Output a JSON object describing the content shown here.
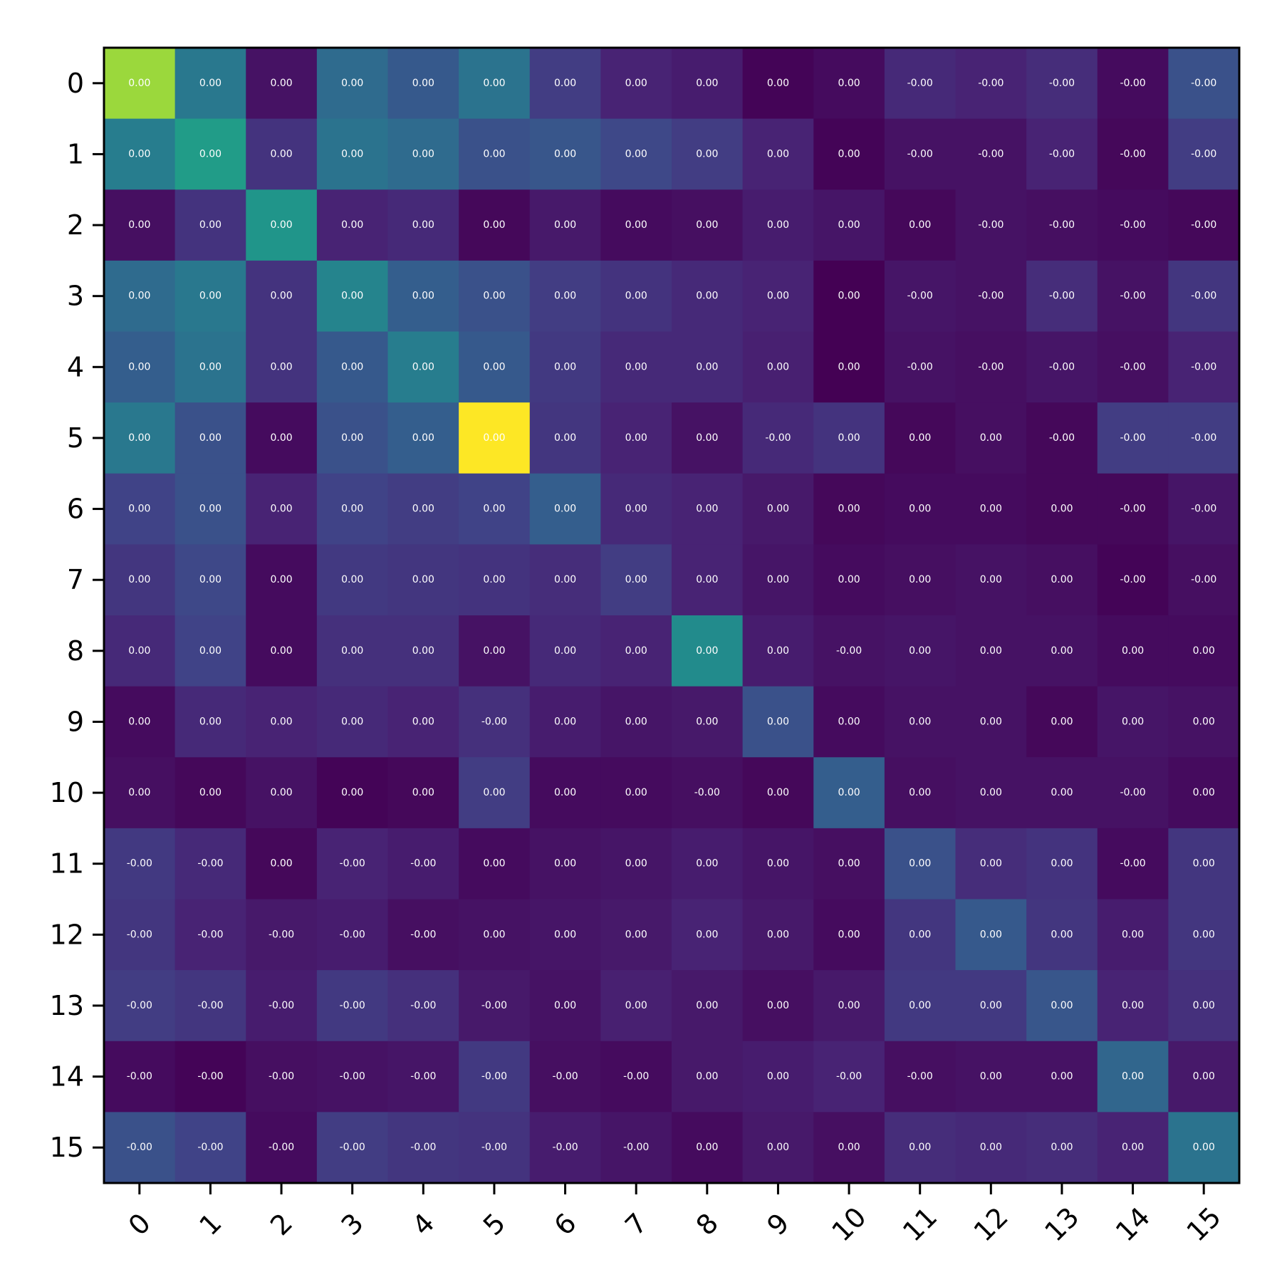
{
  "chart_data": {
    "type": "heatmap",
    "title": "",
    "xlabel": "",
    "ylabel": "",
    "x_ticks": [
      "0",
      "1",
      "2",
      "3",
      "4",
      "5",
      "6",
      "7",
      "8",
      "9",
      "10",
      "11",
      "12",
      "13",
      "14",
      "15"
    ],
    "y_ticks": [
      "0",
      "1",
      "2",
      "3",
      "4",
      "5",
      "6",
      "7",
      "8",
      "9",
      "10",
      "11",
      "12",
      "13",
      "14",
      "15"
    ],
    "colormap": "viridis",
    "intensity": [
      [
        0.85,
        0.4,
        0.05,
        0.35,
        0.28,
        0.38,
        0.18,
        0.1,
        0.08,
        0.01,
        0.03,
        0.12,
        0.1,
        0.13,
        0.03,
        0.25
      ],
      [
        0.42,
        0.55,
        0.15,
        0.38,
        0.35,
        0.25,
        0.27,
        0.22,
        0.18,
        0.1,
        0.01,
        0.05,
        0.05,
        0.1,
        0.02,
        0.18
      ],
      [
        0.04,
        0.15,
        0.52,
        0.1,
        0.12,
        0.02,
        0.07,
        0.03,
        0.04,
        0.08,
        0.06,
        0.02,
        0.05,
        0.04,
        0.03,
        0.02
      ],
      [
        0.35,
        0.4,
        0.15,
        0.45,
        0.3,
        0.25,
        0.18,
        0.15,
        0.12,
        0.1,
        0.0,
        0.06,
        0.05,
        0.13,
        0.05,
        0.16
      ],
      [
        0.3,
        0.38,
        0.15,
        0.28,
        0.42,
        0.28,
        0.17,
        0.12,
        0.12,
        0.09,
        0.0,
        0.05,
        0.04,
        0.06,
        0.04,
        0.1
      ],
      [
        0.4,
        0.25,
        0.03,
        0.25,
        0.3,
        1.0,
        0.16,
        0.1,
        0.05,
        0.12,
        0.15,
        0.02,
        0.04,
        0.02,
        0.18,
        0.18
      ],
      [
        0.2,
        0.25,
        0.1,
        0.2,
        0.18,
        0.2,
        0.3,
        0.12,
        0.1,
        0.07,
        0.02,
        0.03,
        0.03,
        0.02,
        0.02,
        0.06
      ],
      [
        0.16,
        0.22,
        0.03,
        0.17,
        0.16,
        0.15,
        0.13,
        0.18,
        0.1,
        0.06,
        0.03,
        0.04,
        0.05,
        0.04,
        0.01,
        0.04
      ],
      [
        0.12,
        0.2,
        0.03,
        0.14,
        0.14,
        0.05,
        0.12,
        0.1,
        0.48,
        0.08,
        0.05,
        0.06,
        0.05,
        0.05,
        0.03,
        0.03
      ],
      [
        0.03,
        0.12,
        0.1,
        0.12,
        0.1,
        0.14,
        0.08,
        0.06,
        0.07,
        0.25,
        0.03,
        0.05,
        0.05,
        0.02,
        0.06,
        0.05
      ],
      [
        0.04,
        0.02,
        0.05,
        0.01,
        0.02,
        0.18,
        0.03,
        0.03,
        0.04,
        0.02,
        0.3,
        0.04,
        0.05,
        0.05,
        0.05,
        0.03
      ],
      [
        0.17,
        0.12,
        0.02,
        0.1,
        0.08,
        0.03,
        0.05,
        0.06,
        0.08,
        0.06,
        0.04,
        0.25,
        0.13,
        0.15,
        0.03,
        0.16
      ],
      [
        0.16,
        0.1,
        0.07,
        0.08,
        0.04,
        0.05,
        0.06,
        0.07,
        0.1,
        0.07,
        0.03,
        0.16,
        0.28,
        0.16,
        0.08,
        0.16
      ],
      [
        0.18,
        0.16,
        0.08,
        0.17,
        0.14,
        0.07,
        0.05,
        0.09,
        0.07,
        0.04,
        0.07,
        0.17,
        0.17,
        0.27,
        0.1,
        0.14
      ],
      [
        0.03,
        0.01,
        0.04,
        0.05,
        0.06,
        0.17,
        0.04,
        0.03,
        0.07,
        0.08,
        0.1,
        0.04,
        0.05,
        0.05,
        0.33,
        0.07
      ],
      [
        0.25,
        0.2,
        0.03,
        0.18,
        0.16,
        0.15,
        0.08,
        0.06,
        0.03,
        0.07,
        0.04,
        0.13,
        0.12,
        0.13,
        0.1,
        0.38
      ]
    ],
    "labels": [
      [
        "0.00",
        "0.00",
        "0.00",
        "0.00",
        "0.00",
        "0.00",
        "0.00",
        "0.00",
        "0.00",
        "0.00",
        "0.00",
        "-0.00",
        "-0.00",
        "-0.00",
        "-0.00",
        "-0.00"
      ],
      [
        "0.00",
        "0.00",
        "0.00",
        "0.00",
        "0.00",
        "0.00",
        "0.00",
        "0.00",
        "0.00",
        "0.00",
        "0.00",
        "-0.00",
        "-0.00",
        "-0.00",
        "-0.00",
        "-0.00"
      ],
      [
        "0.00",
        "0.00",
        "0.00",
        "0.00",
        "0.00",
        "0.00",
        "0.00",
        "0.00",
        "0.00",
        "0.00",
        "0.00",
        "0.00",
        "-0.00",
        "-0.00",
        "-0.00",
        "-0.00"
      ],
      [
        "0.00",
        "0.00",
        "0.00",
        "0.00",
        "0.00",
        "0.00",
        "0.00",
        "0.00",
        "0.00",
        "0.00",
        "0.00",
        "-0.00",
        "-0.00",
        "-0.00",
        "-0.00",
        "-0.00"
      ],
      [
        "0.00",
        "0.00",
        "0.00",
        "0.00",
        "0.00",
        "0.00",
        "0.00",
        "0.00",
        "0.00",
        "0.00",
        "0.00",
        "-0.00",
        "-0.00",
        "-0.00",
        "-0.00",
        "-0.00"
      ],
      [
        "0.00",
        "0.00",
        "0.00",
        "0.00",
        "0.00",
        "0.00",
        "0.00",
        "0.00",
        "0.00",
        "-0.00",
        "0.00",
        "0.00",
        "0.00",
        "-0.00",
        "-0.00",
        "-0.00"
      ],
      [
        "0.00",
        "0.00",
        "0.00",
        "0.00",
        "0.00",
        "0.00",
        "0.00",
        "0.00",
        "0.00",
        "0.00",
        "0.00",
        "0.00",
        "0.00",
        "0.00",
        "-0.00",
        "-0.00"
      ],
      [
        "0.00",
        "0.00",
        "0.00",
        "0.00",
        "0.00",
        "0.00",
        "0.00",
        "0.00",
        "0.00",
        "0.00",
        "0.00",
        "0.00",
        "0.00",
        "0.00",
        "-0.00",
        "-0.00"
      ],
      [
        "0.00",
        "0.00",
        "0.00",
        "0.00",
        "0.00",
        "0.00",
        "0.00",
        "0.00",
        "0.00",
        "0.00",
        "-0.00",
        "0.00",
        "0.00",
        "0.00",
        "0.00",
        "0.00"
      ],
      [
        "0.00",
        "0.00",
        "0.00",
        "0.00",
        "0.00",
        "-0.00",
        "0.00",
        "0.00",
        "0.00",
        "0.00",
        "0.00",
        "0.00",
        "0.00",
        "0.00",
        "0.00",
        "0.00"
      ],
      [
        "0.00",
        "0.00",
        "0.00",
        "0.00",
        "0.00",
        "0.00",
        "0.00",
        "0.00",
        "-0.00",
        "0.00",
        "0.00",
        "0.00",
        "0.00",
        "0.00",
        "-0.00",
        "0.00"
      ],
      [
        "-0.00",
        "-0.00",
        "0.00",
        "-0.00",
        "-0.00",
        "0.00",
        "0.00",
        "0.00",
        "0.00",
        "0.00",
        "0.00",
        "0.00",
        "0.00",
        "0.00",
        "-0.00",
        "0.00"
      ],
      [
        "-0.00",
        "-0.00",
        "-0.00",
        "-0.00",
        "-0.00",
        "0.00",
        "0.00",
        "0.00",
        "0.00",
        "0.00",
        "0.00",
        "0.00",
        "0.00",
        "0.00",
        "0.00",
        "0.00"
      ],
      [
        "-0.00",
        "-0.00",
        "-0.00",
        "-0.00",
        "-0.00",
        "-0.00",
        "0.00",
        "0.00",
        "0.00",
        "0.00",
        "0.00",
        "0.00",
        "0.00",
        "0.00",
        "0.00",
        "0.00"
      ],
      [
        "-0.00",
        "-0.00",
        "-0.00",
        "-0.00",
        "-0.00",
        "-0.00",
        "-0.00",
        "-0.00",
        "0.00",
        "0.00",
        "-0.00",
        "-0.00",
        "0.00",
        "0.00",
        "0.00",
        "0.00"
      ],
      [
        "-0.00",
        "-0.00",
        "-0.00",
        "-0.00",
        "-0.00",
        "-0.00",
        "-0.00",
        "-0.00",
        "0.00",
        "0.00",
        "0.00",
        "0.00",
        "0.00",
        "0.00",
        "0.00",
        "0.00"
      ]
    ]
  }
}
